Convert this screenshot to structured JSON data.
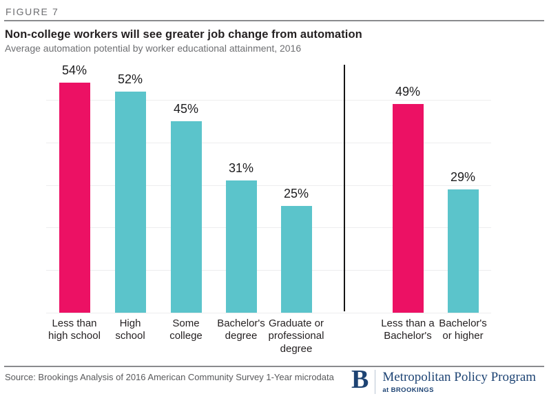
{
  "figure_label": "FIGURE 7",
  "title": "Non-college workers will see greater job change from automation",
  "subtitle": "Average automation potential by worker educational attainment, 2016",
  "source": "Source: Brookings Analysis of 2016 American Community Survey 1-Year microdata",
  "logo": {
    "initial": "B",
    "program": "Metropolitan Policy Program",
    "tagline": "at BROOKINGS"
  },
  "colors": {
    "highlight": "#ec1164",
    "base": "#5bc4cb",
    "gridline": "#ededee",
    "divider": "#141414"
  },
  "chart_data": {
    "type": "bar",
    "title": "Non-college workers will see greater job change from automation",
    "subtitle": "Average automation potential by worker educational attainment, 2016",
    "unit": "%",
    "xlabel": "",
    "ylabel": "",
    "ylim": [
      0,
      56
    ],
    "gridline_step": 10,
    "grid": "horizontal",
    "legend": "none",
    "divider_after_index": 4,
    "bars": [
      {
        "category": "Less than high school",
        "category_lines": [
          "Less than",
          "high school"
        ],
        "value": 54,
        "label": "54%",
        "color_key": "highlight",
        "group": "by educational attainment"
      },
      {
        "category": "High school",
        "category_lines": [
          "High",
          "school"
        ],
        "value": 52,
        "label": "52%",
        "color_key": "base",
        "group": "by educational attainment"
      },
      {
        "category": "Some college",
        "category_lines": [
          "Some",
          "college"
        ],
        "value": 45,
        "label": "45%",
        "color_key": "base",
        "group": "by educational attainment"
      },
      {
        "category": "Bachelor's degree",
        "category_lines": [
          "Bachelor's",
          "degree"
        ],
        "value": 31,
        "label": "31%",
        "color_key": "base",
        "group": "by educational attainment"
      },
      {
        "category": "Graduate or professional degree",
        "category_lines": [
          "Graduate or",
          "professional",
          "degree"
        ],
        "value": 25,
        "label": "25%",
        "color_key": "base",
        "group": "by educational attainment"
      },
      {
        "category": "Less than a Bachelor's",
        "category_lines": [
          "Less than a",
          "Bachelor's"
        ],
        "value": 49,
        "label": "49%",
        "color_key": "highlight",
        "group": "summary"
      },
      {
        "category": "Bachelor's or higher",
        "category_lines": [
          "Bachelor's",
          "or higher"
        ],
        "value": 29,
        "label": "29%",
        "color_key": "base",
        "group": "summary"
      }
    ]
  }
}
